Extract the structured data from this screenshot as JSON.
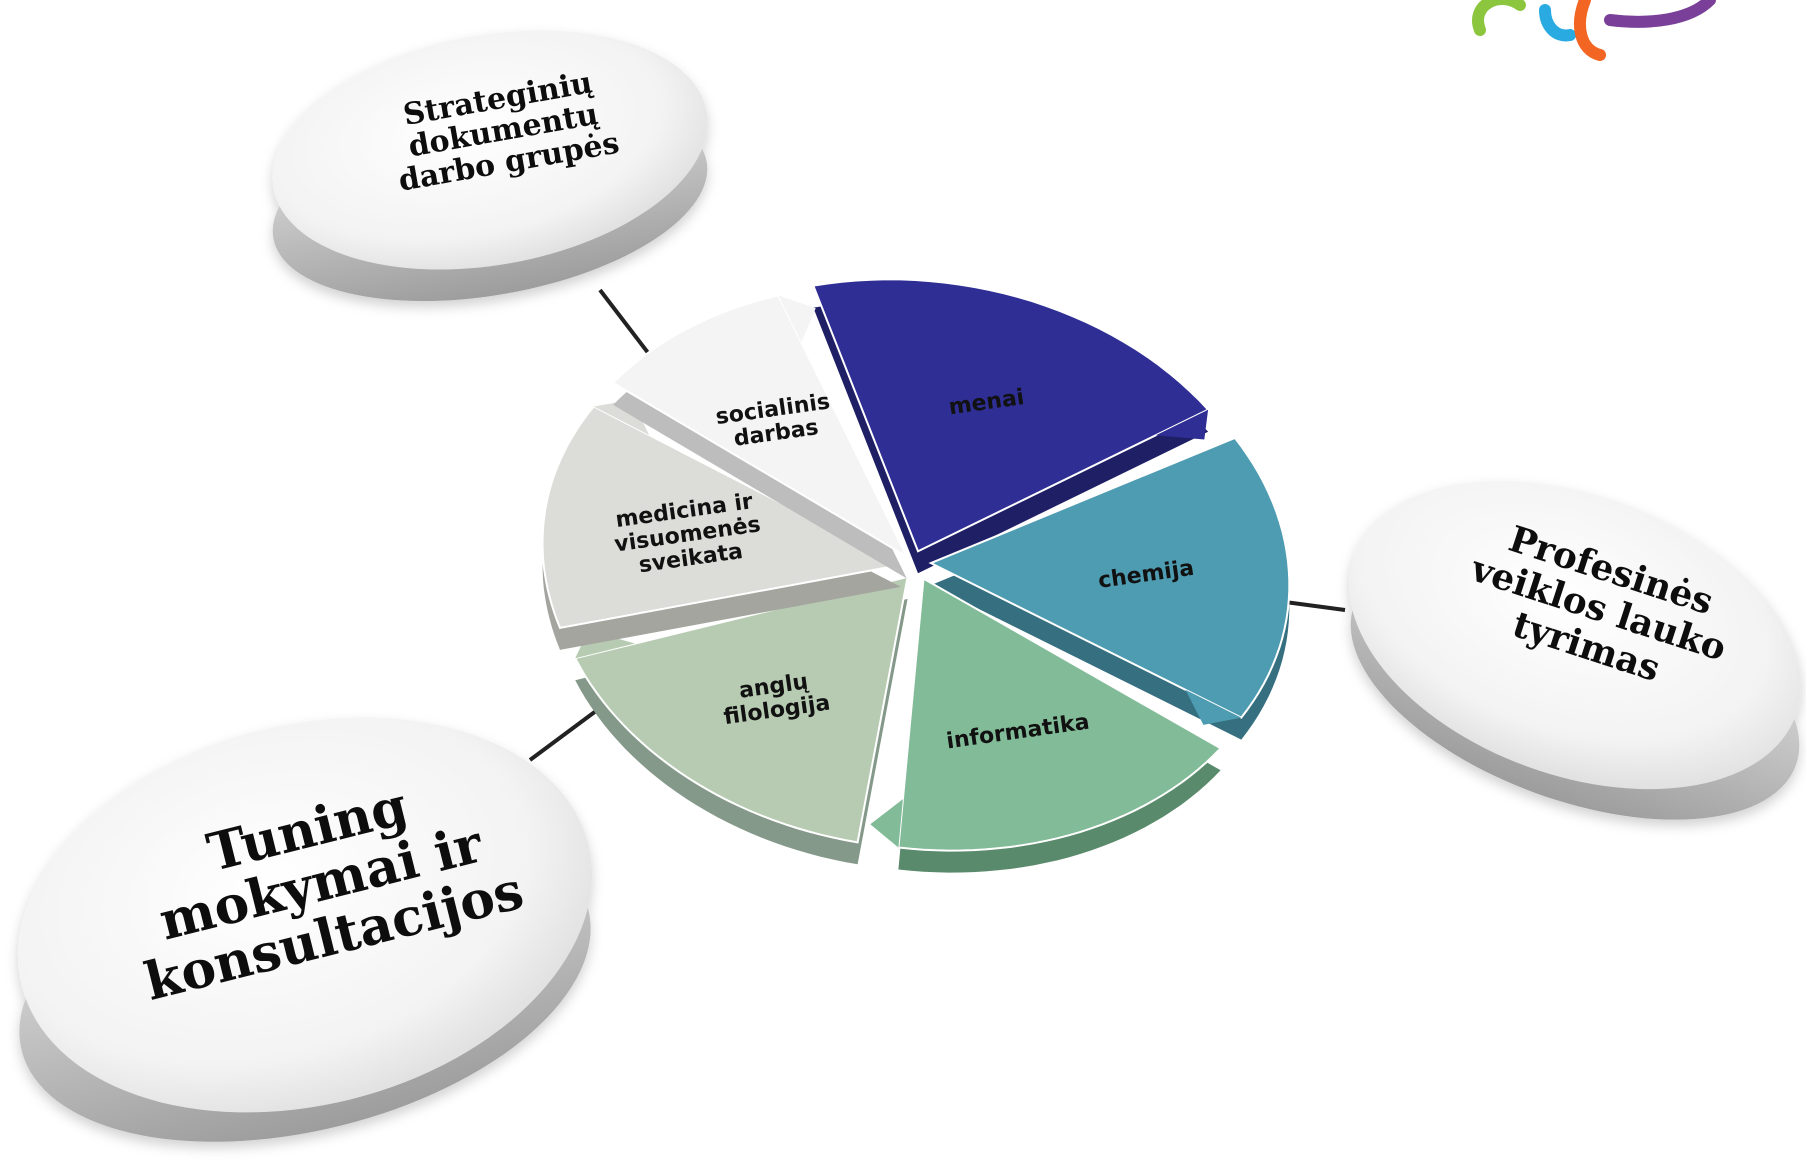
{
  "center_segments": [
    {
      "id": "menai",
      "lines": [
        "menai"
      ],
      "color": "#2e2e94",
      "dark": "#1f1f66"
    },
    {
      "id": "chemija",
      "lines": [
        "chemija"
      ],
      "color": "#4e9cb2",
      "dark": "#356f80"
    },
    {
      "id": "informatika",
      "lines": [
        "informatika"
      ],
      "color": "#82bb98",
      "dark": "#5a8a6c"
    },
    {
      "id": "anglu",
      "lines": [
        "anglų",
        "filologija"
      ],
      "color": "#b6cbb1",
      "dark": "#85998a"
    },
    {
      "id": "medicina",
      "lines": [
        "medicina ir",
        "visuomenės",
        "sveikata"
      ],
      "color": "#dcdcd8",
      "dark": "#a5a5a0"
    },
    {
      "id": "socialinis",
      "lines": [
        "socialinis",
        "darbas"
      ],
      "color": "#f4f4f4",
      "dark": "#bdbdbd"
    }
  ],
  "outer_discs": {
    "top_left": {
      "lines": [
        "Strateginių",
        "dokumentų",
        "darbo grupės"
      ]
    },
    "right": {
      "lines": [
        "Profesinės",
        "veiklos lauko",
        "tyrimas"
      ]
    },
    "bottom_left": {
      "lines": [
        "Tuning",
        "mokymai ir",
        "konsultacijos"
      ]
    }
  },
  "logo": {
    "colors": [
      "#8cc63f",
      "#29abe2",
      "#f26522",
      "#7a3f98"
    ]
  }
}
